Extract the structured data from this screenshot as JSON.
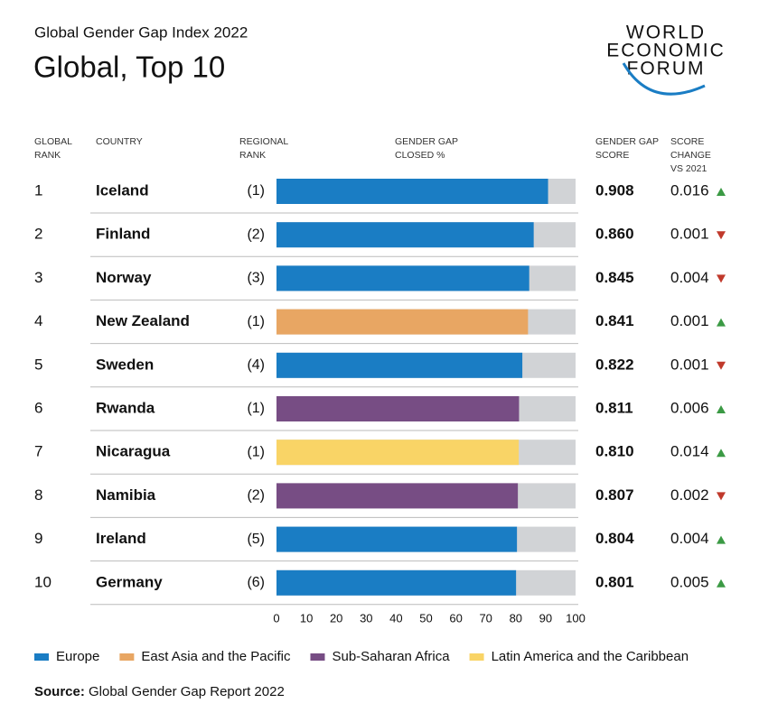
{
  "chart_data": {
    "type": "bar",
    "subtitle": "Global Gender Gap Index 2022",
    "title": "Global, Top 10",
    "logo": [
      "WORLD",
      "ECONOMIC",
      "FORUM"
    ],
    "headers": [
      "GLOBAL RANK",
      "COUNTRY",
      "REGIONAL RANK",
      "GENDER GAP CLOSED %",
      "GENDER GAP SCORE",
      "SCORE CHANGE VS 2021"
    ],
    "ranks": [
      1,
      2,
      3,
      4,
      5,
      6,
      7,
      8,
      9,
      10
    ],
    "categories": [
      "Iceland",
      "Finland",
      "Norway",
      "New Zealand",
      "Sweden",
      "Rwanda",
      "Nicaragua",
      "Namibia",
      "Ireland",
      "Germany"
    ],
    "regional_ranks": [
      "(1)",
      "(2)",
      "(3)",
      "(1)",
      "(4)",
      "(1)",
      "(1)",
      "(2)",
      "(5)",
      "(6)"
    ],
    "values": [
      90.8,
      86.0,
      84.5,
      84.1,
      82.2,
      81.1,
      81.0,
      80.7,
      80.4,
      80.1
    ],
    "value_labels": [
      "0.908",
      "0.860",
      "0.845",
      "0.841",
      "0.822",
      "0.811",
      "0.810",
      "0.807",
      "0.804",
      "0.801"
    ],
    "bar_colors": [
      "#1a7dc4",
      "#1a7dc4",
      "#1a7dc4",
      "#e8a663",
      "#1a7dc4",
      "#774d84",
      "#f9d466",
      "#774d84",
      "#1a7dc4",
      "#1a7dc4"
    ],
    "score_change": [
      0.016,
      0.001,
      0.004,
      0.001,
      0.001,
      0.006,
      0.014,
      0.002,
      0.004,
      0.005
    ],
    "change_direction": [
      "up",
      "down",
      "down",
      "up",
      "down",
      "up",
      "up",
      "down",
      "up",
      "up"
    ],
    "arrow_colors": {
      "up": "#3b9a44",
      "down": "#c0392b"
    },
    "xlim": [
      0,
      100
    ],
    "xticks": [
      0,
      10,
      20,
      30,
      40,
      50,
      60,
      70,
      80,
      90,
      100
    ],
    "legend": [
      {
        "name": "Europe",
        "color": "#1a7dc4"
      },
      {
        "name": "East Asia and the Pacific",
        "color": "#e8a663"
      },
      {
        "name": "Sub-Saharan Africa",
        "color": "#774d84"
      },
      {
        "name": "Latin America and the Caribbean",
        "color": "#f9d466"
      }
    ],
    "source_label": "Source:",
    "source": "Global Gender Gap Report 2022"
  }
}
